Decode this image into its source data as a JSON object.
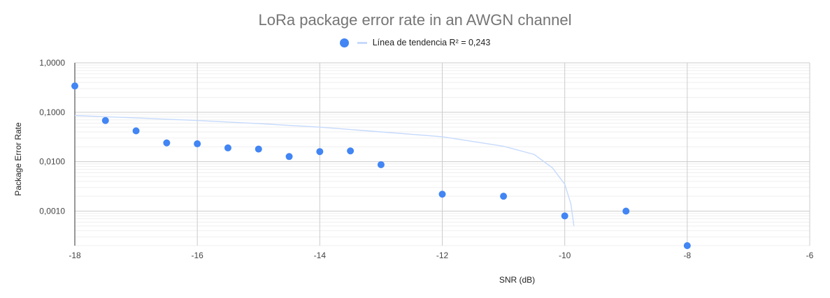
{
  "chart_data": {
    "type": "scatter",
    "title": "LoRa package error rate in an AWGN channel",
    "xlabel": "SNR (dB)",
    "ylabel": "Package Error Rate",
    "xlim": [
      -18,
      -6
    ],
    "ylim": [
      0.0002,
      1.0
    ],
    "y_scale": "log",
    "x_ticks": [
      -18,
      -16,
      -14,
      -12,
      -10,
      -8,
      -6
    ],
    "x_tick_labels": [
      "-18",
      "-16",
      "-14",
      "-12",
      "-10",
      "-8",
      "-6"
    ],
    "y_ticks": [
      1.0,
      0.1,
      0.01,
      0.001
    ],
    "y_tick_labels": [
      "1,0000",
      "0,1000",
      "0,0100",
      "0,0010"
    ],
    "grid": true,
    "legend_position": "top",
    "series": [
      {
        "color": "#4285f4",
        "x": [
          -18,
          -17.5,
          -17,
          -16.5,
          -16,
          -15.5,
          -15,
          -14.5,
          -14,
          -13.5,
          -13,
          -12,
          -11,
          -10,
          -9,
          -8
        ],
        "y": [
          0.34,
          0.068,
          0.042,
          0.024,
          0.023,
          0.019,
          0.018,
          0.0127,
          0.016,
          0.0165,
          0.0087,
          0.0022,
          0.002,
          0.0008,
          0.001,
          0.0002
        ]
      }
    ],
    "trendline": {
      "name": "Línea de tendencia R² = 0,243",
      "color": "#c6dafc",
      "type": "linear",
      "r_squared": 0.243,
      "x": [
        -18,
        -17,
        -16,
        -15,
        -14,
        -13,
        -12,
        -11,
        -10.5,
        -10.2,
        -10,
        -9.9,
        -9.85
      ],
      "y": [
        0.086,
        0.077,
        0.068,
        0.059,
        0.05,
        0.04,
        0.032,
        0.0205,
        0.014,
        0.0075,
        0.0035,
        0.0014,
        0.0005
      ]
    }
  }
}
